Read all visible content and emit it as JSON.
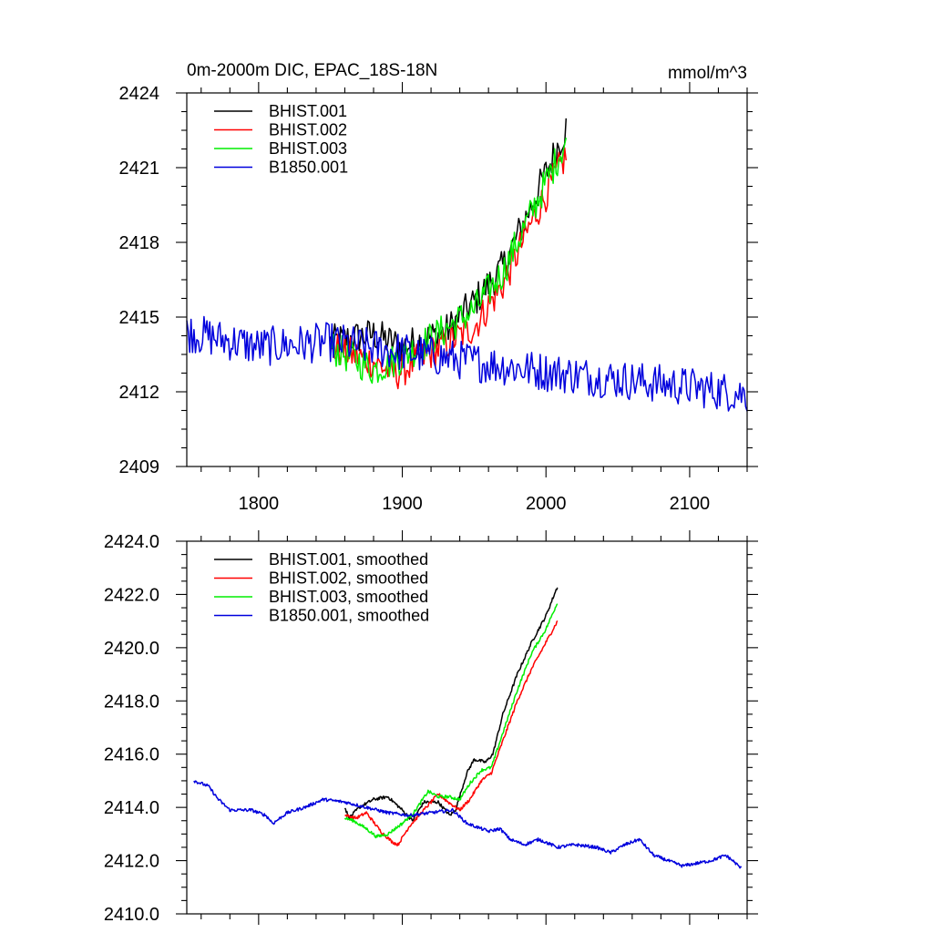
{
  "chart_data": [
    {
      "type": "line",
      "title": "0m-2000m DIC, EPAC_18S-18N",
      "units": "mmol/m^3",
      "xlim": [
        1750,
        2140
      ],
      "ylim": [
        2409,
        2424
      ],
      "xticks": [
        1800,
        1900,
        2000,
        2100
      ],
      "xtick_labels": [
        "1800",
        "1900",
        "2000",
        "2100"
      ],
      "yticks": [
        2409,
        2412,
        2415,
        2418,
        2421,
        2424
      ],
      "ytick_labels": [
        "2409",
        "2412",
        "2415",
        "2418",
        "2421",
        "2424"
      ],
      "legend_position": "top-left",
      "series": [
        {
          "name": "BHIST.001",
          "color": "#000000",
          "style": "noisy",
          "keys": [
            [
              1850,
              2414.0
            ],
            [
              1880,
              2414.3
            ],
            [
              1900,
              2413.8
            ],
            [
              1930,
              2414.4
            ],
            [
              1950,
              2415.6
            ],
            [
              1970,
              2417.0
            ],
            [
              1990,
              2419.5
            ],
            [
              2014,
              2422.6
            ]
          ],
          "noise": 0.7
        },
        {
          "name": "BHIST.002",
          "color": "#ff0000",
          "style": "noisy",
          "keys": [
            [
              1850,
              2413.8
            ],
            [
              1880,
              2413.2
            ],
            [
              1895,
              2412.7
            ],
            [
              1930,
              2413.9
            ],
            [
              1950,
              2414.6
            ],
            [
              1970,
              2416.3
            ],
            [
              1990,
              2418.8
            ],
            [
              2014,
              2421.5
            ]
          ],
          "noise": 0.7
        },
        {
          "name": "BHIST.003",
          "color": "#00ee00",
          "style": "noisy",
          "keys": [
            [
              1850,
              2413.8
            ],
            [
              1880,
              2412.9
            ],
            [
              1900,
              2413.4
            ],
            [
              1930,
              2414.5
            ],
            [
              1950,
              2415.3
            ],
            [
              1970,
              2416.8
            ],
            [
              1990,
              2419.2
            ],
            [
              2014,
              2422.1
            ]
          ],
          "noise": 0.7
        },
        {
          "name": "B1850.001",
          "color": "#0000dd",
          "style": "noisy",
          "keys": [
            [
              1750,
              2414.4
            ],
            [
              1800,
              2413.8
            ],
            [
              1850,
              2414.0
            ],
            [
              1900,
              2413.6
            ],
            [
              1950,
              2413.2
            ],
            [
              2000,
              2412.8
            ],
            [
              2050,
              2412.5
            ],
            [
              2100,
              2412.2
            ],
            [
              2140,
              2411.9
            ]
          ],
          "noise": 0.8
        }
      ]
    },
    {
      "type": "line",
      "xlim": [
        1750,
        2140
      ],
      "ylim": [
        2410,
        2424
      ],
      "xticks": [
        1800,
        1900,
        2000,
        2100
      ],
      "yticks": [
        2410,
        2412,
        2414,
        2416,
        2418,
        2420,
        2422,
        2424
      ],
      "ytick_labels": [
        "2410.0",
        "2412.0",
        "2414.0",
        "2416.0",
        "2418.0",
        "2420.0",
        "2422.0",
        "2424.0"
      ],
      "legend_position": "top-left",
      "series": [
        {
          "name": "BHIST.001, smoothed",
          "color": "#000000",
          "style": "smooth",
          "keys": [
            [
              1860,
              2414.0
            ],
            [
              1863,
              2413.6
            ],
            [
              1870,
              2414.0
            ],
            [
              1880,
              2414.3
            ],
            [
              1890,
              2414.4
            ],
            [
              1900,
              2413.9
            ],
            [
              1907,
              2413.5
            ],
            [
              1915,
              2414.2
            ],
            [
              1925,
              2414.2
            ],
            [
              1933,
              2413.7
            ],
            [
              1937,
              2413.9
            ],
            [
              1945,
              2415.3
            ],
            [
              1950,
              2415.8
            ],
            [
              1958,
              2415.7
            ],
            [
              1963,
              2416.0
            ],
            [
              1970,
              2417.5
            ],
            [
              1980,
              2419.0
            ],
            [
              1990,
              2420.2
            ],
            [
              2000,
              2421.2
            ],
            [
              2008,
              2422.3
            ]
          ]
        },
        {
          "name": "BHIST.002, smoothed",
          "color": "#ff0000",
          "style": "smooth",
          "keys": [
            [
              1860,
              2413.7
            ],
            [
              1868,
              2413.6
            ],
            [
              1875,
              2413.8
            ],
            [
              1885,
              2413.1
            ],
            [
              1893,
              2412.7
            ],
            [
              1897,
              2412.6
            ],
            [
              1905,
              2413.3
            ],
            [
              1915,
              2413.9
            ],
            [
              1925,
              2414.5
            ],
            [
              1932,
              2414.2
            ],
            [
              1940,
              2413.9
            ],
            [
              1947,
              2414.3
            ],
            [
              1955,
              2415.0
            ],
            [
              1962,
              2415.3
            ],
            [
              1970,
              2416.5
            ],
            [
              1980,
              2418.0
            ],
            [
              1990,
              2419.2
            ],
            [
              2000,
              2420.2
            ],
            [
              2008,
              2421.0
            ]
          ]
        },
        {
          "name": "BHIST.003, smoothed",
          "color": "#00ee00",
          "style": "smooth",
          "keys": [
            [
              1860,
              2413.6
            ],
            [
              1866,
              2413.5
            ],
            [
              1875,
              2413.2
            ],
            [
              1882,
              2412.9
            ],
            [
              1890,
              2413.0
            ],
            [
              1900,
              2413.4
            ],
            [
              1908,
              2413.8
            ],
            [
              1918,
              2414.6
            ],
            [
              1925,
              2414.4
            ],
            [
              1932,
              2414.4
            ],
            [
              1940,
              2414.3
            ],
            [
              1947,
              2414.9
            ],
            [
              1955,
              2415.4
            ],
            [
              1962,
              2415.5
            ],
            [
              1970,
              2416.8
            ],
            [
              1980,
              2418.4
            ],
            [
              1990,
              2419.8
            ],
            [
              2000,
              2420.7
            ],
            [
              2008,
              2421.7
            ]
          ]
        },
        {
          "name": "B1850.001, smoothed",
          "color": "#0000dd",
          "style": "smooth",
          "keys": [
            [
              1755,
              2415.0
            ],
            [
              1765,
              2414.8
            ],
            [
              1772,
              2414.3
            ],
            [
              1780,
              2413.9
            ],
            [
              1795,
              2413.9
            ],
            [
              1805,
              2413.7
            ],
            [
              1810,
              2413.4
            ],
            [
              1820,
              2413.8
            ],
            [
              1832,
              2414.0
            ],
            [
              1845,
              2414.3
            ],
            [
              1860,
              2414.2
            ],
            [
              1875,
              2414.0
            ],
            [
              1890,
              2413.8
            ],
            [
              1905,
              2413.7
            ],
            [
              1920,
              2413.8
            ],
            [
              1935,
              2413.9
            ],
            [
              1945,
              2413.4
            ],
            [
              1960,
              2413.1
            ],
            [
              1968,
              2413.2
            ],
            [
              1975,
              2412.8
            ],
            [
              1985,
              2412.6
            ],
            [
              1995,
              2412.8
            ],
            [
              2008,
              2412.5
            ],
            [
              2020,
              2412.6
            ],
            [
              2035,
              2412.5
            ],
            [
              2045,
              2412.3
            ],
            [
              2055,
              2412.6
            ],
            [
              2065,
              2412.8
            ],
            [
              2075,
              2412.2
            ],
            [
              2085,
              2412.0
            ],
            [
              2095,
              2411.8
            ],
            [
              2105,
              2411.9
            ],
            [
              2115,
              2412.0
            ],
            [
              2125,
              2412.2
            ],
            [
              2130,
              2412.0
            ],
            [
              2136,
              2411.7
            ]
          ]
        }
      ]
    }
  ]
}
